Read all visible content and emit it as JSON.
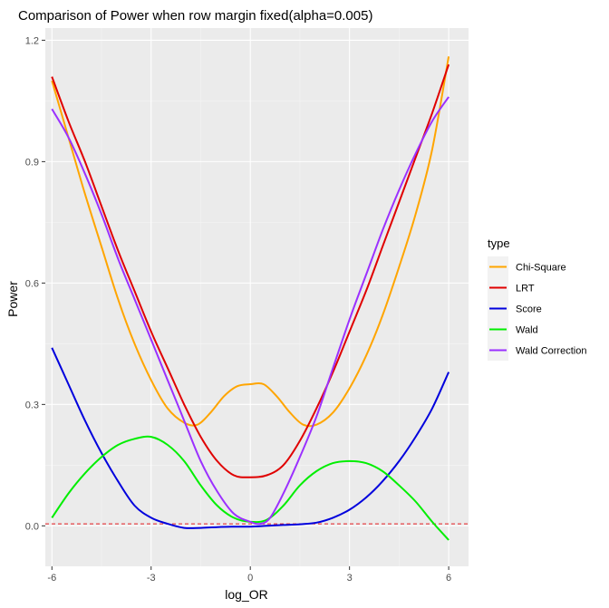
{
  "chart_data": {
    "type": "line",
    "title": "Comparison of Power when row margin fixed(alpha=0.005)",
    "xlabel": "log_OR",
    "ylabel": "Power",
    "xlim": [
      -6.2,
      6.6
    ],
    "ylim": [
      -0.1,
      1.23
    ],
    "x_ticks": [
      -6,
      -3,
      0,
      3,
      6
    ],
    "x_tick_labels": [
      "-6",
      "-3",
      "0",
      "3",
      "6"
    ],
    "y_ticks": [
      0.0,
      0.3,
      0.6,
      0.9,
      1.2
    ],
    "y_tick_labels": [
      "0.0",
      "0.3",
      "0.6",
      "0.9",
      "1.2"
    ],
    "grid": true,
    "legend": {
      "title": "type",
      "position": "right",
      "entries": [
        "Chi-Square",
        "LRT",
        "Score",
        "Wald",
        "Wald Correction"
      ]
    },
    "reference_line": {
      "y": 0.005,
      "style": "dashed",
      "color": "#e31a1c"
    },
    "series": [
      {
        "name": "Chi-Square",
        "color": "#ffa500",
        "x": [
          -6,
          -5.5,
          -5,
          -4.5,
          -4,
          -3.5,
          -3,
          -2.5,
          -2,
          -1.6,
          -1.2,
          -0.8,
          -0.4,
          0,
          0.4,
          0.8,
          1.2,
          1.6,
          2,
          2.5,
          3,
          3.5,
          4,
          4.5,
          5,
          5.5,
          6
        ],
        "y": [
          1.1,
          0.96,
          0.82,
          0.69,
          0.56,
          0.45,
          0.36,
          0.29,
          0.255,
          0.25,
          0.28,
          0.32,
          0.345,
          0.35,
          0.35,
          0.32,
          0.28,
          0.25,
          0.25,
          0.28,
          0.34,
          0.42,
          0.52,
          0.64,
          0.77,
          0.93,
          1.16
        ]
      },
      {
        "name": "LRT",
        "color": "#e00000",
        "x": [
          -6,
          -5.5,
          -5,
          -4.5,
          -4,
          -3.5,
          -3,
          -2.5,
          -2,
          -1.5,
          -1,
          -0.5,
          0,
          0.5,
          1,
          1.5,
          2,
          2.5,
          3,
          3.5,
          4,
          4.5,
          5,
          5.5,
          6
        ],
        "y": [
          1.11,
          1.0,
          0.9,
          0.79,
          0.68,
          0.58,
          0.48,
          0.39,
          0.3,
          0.22,
          0.16,
          0.125,
          0.12,
          0.125,
          0.15,
          0.21,
          0.29,
          0.38,
          0.48,
          0.58,
          0.69,
          0.8,
          0.91,
          1.02,
          1.14
        ]
      },
      {
        "name": "Score",
        "color": "#0000dd",
        "x": [
          -6,
          -5.5,
          -5,
          -4.5,
          -4,
          -3.5,
          -3,
          -2.5,
          -2,
          -1.5,
          -1,
          -0.5,
          0,
          0.5,
          1,
          1.5,
          2,
          2.5,
          3,
          3.5,
          4,
          4.5,
          5,
          5.5,
          6
        ],
        "y": [
          0.44,
          0.35,
          0.26,
          0.18,
          0.11,
          0.05,
          0.02,
          0.005,
          -0.005,
          -0.005,
          -0.003,
          -0.002,
          -0.002,
          0.0,
          0.002,
          0.004,
          0.008,
          0.02,
          0.04,
          0.07,
          0.11,
          0.16,
          0.22,
          0.29,
          0.38
        ]
      },
      {
        "name": "Wald",
        "color": "#00ee00",
        "x": [
          -6,
          -5.5,
          -5,
          -4.5,
          -4,
          -3.5,
          -3,
          -2.5,
          -2,
          -1.5,
          -1,
          -0.5,
          0,
          0.5,
          1,
          1.5,
          2,
          2.5,
          3,
          3.5,
          4,
          4.5,
          5,
          5.5,
          6
        ],
        "y": [
          0.02,
          0.08,
          0.13,
          0.17,
          0.2,
          0.215,
          0.22,
          0.2,
          0.16,
          0.1,
          0.05,
          0.02,
          0.01,
          0.015,
          0.05,
          0.1,
          0.135,
          0.155,
          0.16,
          0.155,
          0.135,
          0.1,
          0.06,
          0.01,
          -0.035
        ]
      },
      {
        "name": "Wald Correction",
        "color": "#9b30ff",
        "x": [
          -6,
          -5.5,
          -5,
          -4.5,
          -4,
          -3.5,
          -3,
          -2.5,
          -2,
          -1.5,
          -1,
          -0.5,
          0,
          0.3,
          0.6,
          1,
          1.5,
          2,
          2.5,
          3,
          3.5,
          4,
          4.5,
          5,
          5.5,
          6
        ],
        "y": [
          1.03,
          0.96,
          0.87,
          0.77,
          0.66,
          0.56,
          0.46,
          0.36,
          0.26,
          0.16,
          0.085,
          0.03,
          0.01,
          0.005,
          0.02,
          0.08,
          0.17,
          0.27,
          0.39,
          0.51,
          0.62,
          0.73,
          0.83,
          0.92,
          1.0,
          1.06
        ]
      }
    ]
  }
}
